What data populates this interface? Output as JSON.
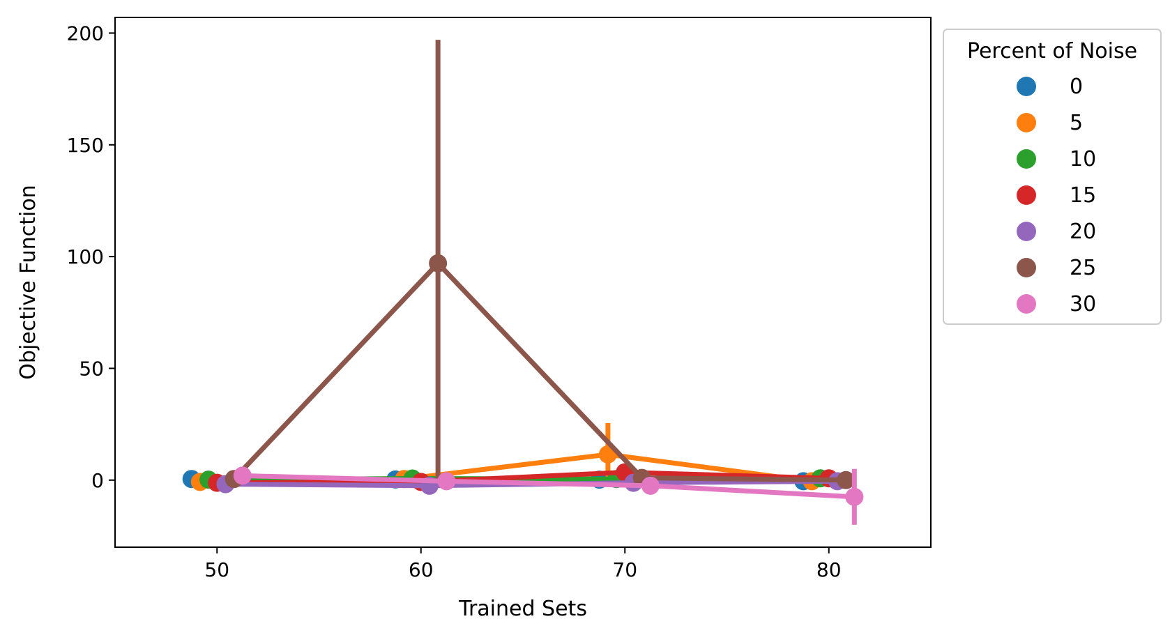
{
  "chart_data": {
    "type": "line",
    "title": "",
    "xlabel": "Trained Sets",
    "ylabel": "Objective Function",
    "xlim": [
      45,
      85
    ],
    "ylim": [
      -30,
      207
    ],
    "xticks": [
      50,
      60,
      70,
      80
    ],
    "yticks": [
      0,
      50,
      100,
      150,
      200
    ],
    "grid": false,
    "legend": {
      "title": "Percent of Noise",
      "placement": "outside upper right"
    },
    "x": [
      50,
      60,
      70,
      80
    ],
    "series": [
      {
        "name": "0",
        "color": "#1f77b4",
        "values": [
          0.5,
          0.3,
          0.2,
          -0.5
        ],
        "ci": [
          [
            0.5,
            0.5
          ],
          [
            0.3,
            0.3
          ],
          [
            0.2,
            0.2
          ],
          [
            -0.5,
            -0.5
          ]
        ]
      },
      {
        "name": "5",
        "color": "#ff7f0e",
        "values": [
          -0.8,
          0.5,
          11.5,
          -0.5
        ],
        "ci": [
          [
            -0.8,
            -0.8
          ],
          [
            0.5,
            0.5
          ],
          [
            0.0,
            25.5
          ],
          [
            -0.5,
            -0.5
          ]
        ]
      },
      {
        "name": "10",
        "color": "#2ca02c",
        "values": [
          0.2,
          0.7,
          0.5,
          0.8
        ],
        "ci": [
          [
            0.2,
            0.2
          ],
          [
            0.7,
            0.7
          ],
          [
            0.5,
            0.5
          ],
          [
            0.8,
            0.8
          ]
        ]
      },
      {
        "name": "15",
        "color": "#d62728",
        "values": [
          -1.2,
          -0.8,
          3.5,
          0.8
        ],
        "ci": [
          [
            -1.2,
            -1.2
          ],
          [
            -0.8,
            -0.8
          ],
          [
            3.5,
            3.5
          ],
          [
            0.8,
            0.8
          ]
        ]
      },
      {
        "name": "20",
        "color": "#9467bd",
        "values": [
          -1.8,
          -2.5,
          -1.2,
          -0.5
        ],
        "ci": [
          [
            -1.8,
            -1.8
          ],
          [
            -2.5,
            -2.5
          ],
          [
            -1.2,
            -1.2
          ],
          [
            -0.5,
            -0.5
          ]
        ]
      },
      {
        "name": "25",
        "color": "#8c564b",
        "values": [
          0.5,
          97,
          1.0,
          0.0
        ],
        "ci": [
          [
            0.5,
            0.5
          ],
          [
            -0.5,
            197
          ],
          [
            1.0,
            1.0
          ],
          [
            0.0,
            0.0
          ]
        ]
      },
      {
        "name": "30",
        "color": "#e377c2",
        "values": [
          2.0,
          -0.5,
          -2.5,
          -7.5
        ],
        "ci": [
          [
            -1.0,
            6.0
          ],
          [
            -0.5,
            -0.5
          ],
          [
            -2.5,
            -2.5
          ],
          [
            -20.0,
            5.0
          ]
        ]
      }
    ]
  }
}
